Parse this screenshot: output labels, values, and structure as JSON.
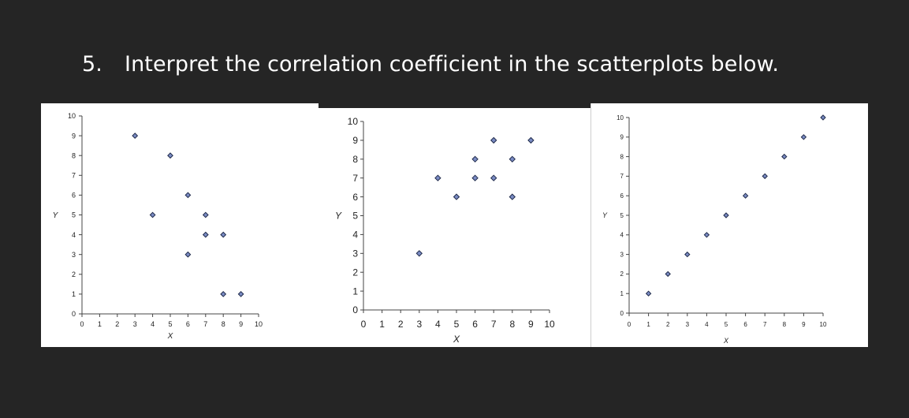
{
  "header": {
    "number": "5.",
    "question": "Interpret the correlation coefficient in the scatterplots below."
  },
  "chart_data": [
    {
      "type": "scatter",
      "xlabel": "X",
      "ylabel": "Y",
      "xlim": [
        0,
        10
      ],
      "ylim": [
        0,
        10
      ],
      "xticks": [
        "0",
        "1",
        "2",
        "3",
        "4",
        "5",
        "6",
        "7",
        "8",
        "9",
        "10"
      ],
      "yticks": [
        "0",
        "1",
        "2",
        "3",
        "4",
        "5",
        "6",
        "7",
        "8",
        "9",
        "10"
      ],
      "grid": false,
      "marker_color": "#7b8cc4",
      "points": [
        {
          "x": 3,
          "y": 9
        },
        {
          "x": 4,
          "y": 5
        },
        {
          "x": 5,
          "y": 8
        },
        {
          "x": 6,
          "y": 6
        },
        {
          "x": 6,
          "y": 3
        },
        {
          "x": 7,
          "y": 5
        },
        {
          "x": 7,
          "y": 4
        },
        {
          "x": 8,
          "y": 4
        },
        {
          "x": 8,
          "y": 1
        },
        {
          "x": 9,
          "y": 1
        }
      ]
    },
    {
      "type": "scatter",
      "xlabel": "X",
      "ylabel": "Y",
      "xlim": [
        0,
        10
      ],
      "ylim": [
        0,
        10
      ],
      "xticks": [
        "0",
        "1",
        "2",
        "3",
        "4",
        "5",
        "6",
        "7",
        "8",
        "9",
        "10"
      ],
      "yticks": [
        "0",
        "1",
        "2",
        "3",
        "4",
        "5",
        "6",
        "7",
        "8",
        "9",
        "10"
      ],
      "grid": false,
      "marker_color": "#7b8cc4",
      "points": [
        {
          "x": 3,
          "y": 3
        },
        {
          "x": 4,
          "y": 7
        },
        {
          "x": 5,
          "y": 6
        },
        {
          "x": 6,
          "y": 8
        },
        {
          "x": 6,
          "y": 7
        },
        {
          "x": 7,
          "y": 9
        },
        {
          "x": 7,
          "y": 7
        },
        {
          "x": 8,
          "y": 8
        },
        {
          "x": 8,
          "y": 6
        },
        {
          "x": 9,
          "y": 9
        }
      ]
    },
    {
      "type": "scatter",
      "xlabel": "X",
      "ylabel": "Y",
      "xlim": [
        0,
        10
      ],
      "ylim": [
        0,
        10
      ],
      "xticks": [
        "0",
        "1",
        "2",
        "3",
        "4",
        "5",
        "6",
        "7",
        "8",
        "9",
        "10"
      ],
      "yticks": [
        "0",
        "1",
        "2",
        "3",
        "4",
        "5",
        "6",
        "7",
        "8",
        "9",
        "10"
      ],
      "grid": false,
      "marker_color": "#7b8cc4",
      "points": [
        {
          "x": 1,
          "y": 1
        },
        {
          "x": 2,
          "y": 2
        },
        {
          "x": 3,
          "y": 3
        },
        {
          "x": 4,
          "y": 4
        },
        {
          "x": 5,
          "y": 5
        },
        {
          "x": 6,
          "y": 6
        },
        {
          "x": 7,
          "y": 7
        },
        {
          "x": 8,
          "y": 8
        },
        {
          "x": 9,
          "y": 9
        },
        {
          "x": 10,
          "y": 10
        }
      ]
    }
  ]
}
